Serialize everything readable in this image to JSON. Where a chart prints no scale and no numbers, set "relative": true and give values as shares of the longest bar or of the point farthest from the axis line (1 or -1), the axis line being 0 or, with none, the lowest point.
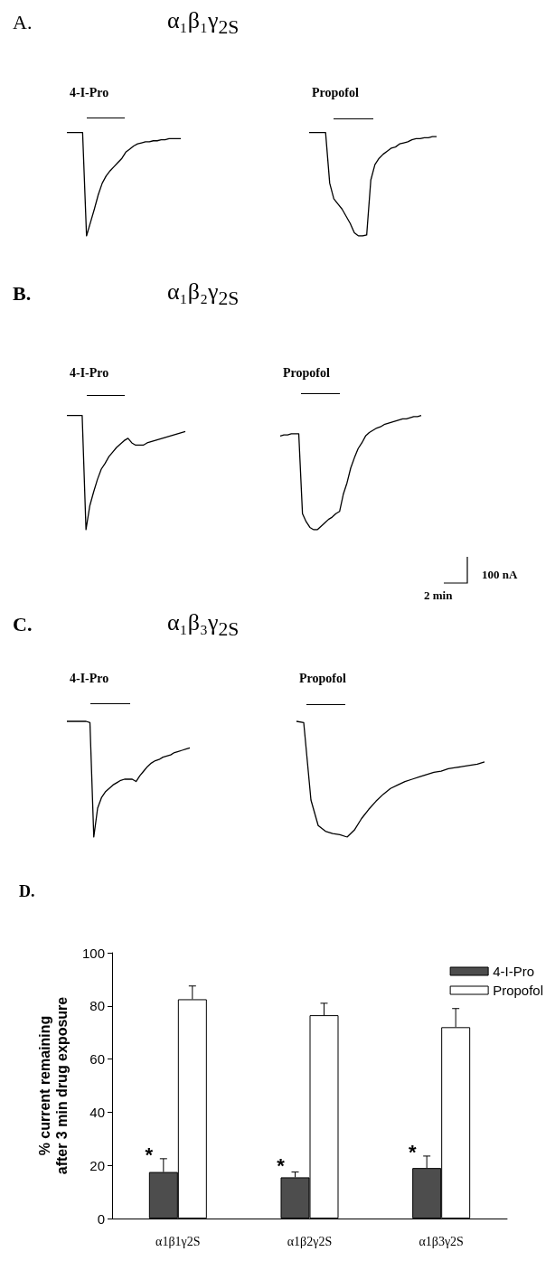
{
  "chart_data": [
    {
      "type": "line",
      "relative": true,
      "title": "4-I-Pro",
      "annotations": [
        "A.",
        "α₁β₁γ$_{2S}$"
      ],
      "grid": false,
      "color": "#000000",
      "categories": [
        null,
        null,
        null,
        null,
        null,
        null,
        null,
        null,
        null,
        null,
        null,
        null,
        null,
        null,
        null,
        null,
        null,
        null,
        null,
        null,
        null,
        null,
        null,
        null,
        null,
        null,
        null,
        null,
        null,
        null
      ],
      "values": [
        1,
        1,
        1,
        1,
        1,
        0,
        0.13,
        0.26,
        0.4,
        0.51,
        0.58,
        0.63,
        0.67,
        0.71,
        0.75,
        0.81,
        0.84,
        0.87,
        0.89,
        0.9,
        0.91,
        0.91,
        0.92,
        0.92,
        0.93,
        0.93,
        0.94,
        0.94,
        0.94,
        0.94
      ]
    },
    {
      "type": "line",
      "relative": true,
      "title": "Propofol",
      "grid": false,
      "color": "#000000",
      "categories": [
        null,
        null,
        null,
        null,
        null,
        null,
        null,
        null,
        null,
        null,
        null,
        null,
        null,
        null,
        null,
        null,
        null,
        null,
        null,
        null,
        null,
        null,
        null,
        null,
        null,
        null,
        null,
        null,
        null,
        null,
        null,
        null
      ],
      "values": [
        1,
        1,
        1,
        1,
        1,
        0.51,
        0.36,
        0.31,
        0.26,
        0.19,
        0.12,
        0.03,
        0,
        0,
        0.01,
        0.54,
        0.69,
        0.75,
        0.79,
        0.82,
        0.85,
        0.86,
        0.89,
        0.9,
        0.91,
        0.93,
        0.94,
        0.94,
        0.95,
        0.95,
        0.96,
        0.96
      ]
    },
    {
      "type": "line",
      "relative": true,
      "title": "4-I-Pro",
      "annotations": [
        "B.",
        "α₁β₂γ$_{2S}$"
      ],
      "grid": false,
      "color": "#000000",
      "categories": [
        null,
        null,
        null,
        null,
        null,
        null,
        null,
        null,
        null,
        null,
        null,
        null,
        null,
        null,
        null,
        null,
        null,
        null,
        null,
        null,
        null,
        null,
        null,
        null,
        null,
        null,
        null,
        null,
        null,
        null,
        null,
        null
      ],
      "values": [
        1,
        1,
        1,
        1,
        1,
        0,
        0.21,
        0.33,
        0.44,
        0.53,
        0.58,
        0.64,
        0.68,
        0.72,
        0.75,
        0.78,
        0.8,
        0.76,
        0.74,
        0.74,
        0.74,
        0.76,
        0.77,
        0.78,
        0.79,
        0.8,
        0.81,
        0.82,
        0.83,
        0.84,
        0.85,
        0.86
      ]
    },
    {
      "type": "line",
      "relative": true,
      "title": "Propofol",
      "annotations": [
        "100 nA",
        "2 min"
      ],
      "grid": false,
      "color": "#000000",
      "categories": [
        null,
        null,
        null,
        null,
        null,
        null,
        null,
        null,
        null,
        null,
        null,
        null,
        null,
        null,
        null,
        null,
        null,
        null,
        null,
        null,
        null,
        null,
        null,
        null,
        null,
        null,
        null,
        null,
        null,
        null,
        null,
        null,
        null,
        null,
        null,
        null,
        null,
        null,
        null
      ],
      "values": [
        0.82,
        0.83,
        0.83,
        0.84,
        0.84,
        0.84,
        0.14,
        0.07,
        0.02,
        0,
        0,
        0.03,
        0.06,
        0.09,
        0.11,
        0.14,
        0.16,
        0.31,
        0.41,
        0.54,
        0.63,
        0.71,
        0.76,
        0.82,
        0.85,
        0.87,
        0.89,
        0.9,
        0.92,
        0.93,
        0.94,
        0.95,
        0.96,
        0.97,
        0.97,
        0.98,
        0.99,
        0.99,
        1
      ]
    },
    {
      "type": "line",
      "relative": true,
      "title": "4-I-Pro",
      "annotations": [
        "C.",
        "α₁β₃γ$_{2S}$"
      ],
      "grid": false,
      "color": "#000000",
      "categories": [
        null,
        null,
        null,
        null,
        null,
        null,
        null,
        null,
        null,
        null,
        null,
        null,
        null,
        null,
        null,
        null,
        null,
        null,
        null,
        null,
        null,
        null,
        null,
        null,
        null,
        null,
        null,
        null,
        null,
        null,
        null,
        null,
        null
      ],
      "values": [
        1,
        1,
        1,
        1,
        1,
        1,
        0.99,
        0,
        0.25,
        0.34,
        0.39,
        0.42,
        0.45,
        0.47,
        0.49,
        0.5,
        0.5,
        0.5,
        0.48,
        0.53,
        0.57,
        0.61,
        0.64,
        0.66,
        0.67,
        0.69,
        0.7,
        0.71,
        0.73,
        0.74,
        0.75,
        0.76,
        0.77
      ]
    },
    {
      "type": "line",
      "relative": true,
      "title": "Propofol",
      "grid": false,
      "color": "#000000",
      "categories": [
        null,
        null,
        null,
        null,
        null,
        null,
        null,
        null,
        null,
        null,
        null,
        null,
        null,
        null,
        null,
        null,
        null,
        null,
        null,
        null,
        null,
        null,
        null,
        null,
        null,
        null,
        null
      ],
      "values": [
        1,
        0.99,
        0.32,
        0.1,
        0.05,
        0.03,
        0.02,
        0,
        0.06,
        0.16,
        0.24,
        0.31,
        0.37,
        0.42,
        0.45,
        0.48,
        0.5,
        0.52,
        0.54,
        0.56,
        0.57,
        0.59,
        0.6,
        0.61,
        0.62,
        0.63,
        0.65
      ]
    },
    {
      "type": "bar",
      "title": "D.",
      "ylabel": "% current remaining\nafter 3 min drug exposure",
      "categories": [
        "α1β1γ2S",
        "α1β2γ2S",
        "α1β3γ2S"
      ],
      "series": [
        {
          "name": "4-I-Pro",
          "color": "#4d4d4d",
          "values": [
            17.5,
            15.5,
            19
          ],
          "errors": [
            [
              17.5,
              22.5
            ],
            [
              15.5,
              17.5
            ],
            [
              19,
              23.5
            ]
          ]
        },
        {
          "name": "Propofol",
          "color": "#ffffff",
          "values": [
            82.5,
            76.5,
            72
          ],
          "errors": [
            [
              82.5,
              87.5
            ],
            [
              76.5,
              81
            ],
            [
              72,
              79
            ]
          ]
        }
      ],
      "annotations": [
        {
          "text": "*",
          "x": "α1β1γ2S",
          "y": 26
        },
        {
          "text": "*",
          "x": "α1β2γ2S",
          "y": 22
        },
        {
          "text": "*",
          "x": "α1β3γ2S",
          "y": 27
        }
      ],
      "ylim": [
        0,
        100
      ],
      "yticks": [
        0,
        20,
        40,
        60,
        80,
        100
      ],
      "grid": false,
      "legend": "top right"
    }
  ]
}
